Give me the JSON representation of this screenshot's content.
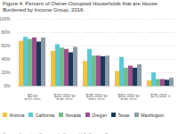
{
  "chart_data": {
    "type": "bar",
    "title": "Figure 4. Percent of Owner-Occupied Households that are House Burdened by Income Group,  2016.",
    "annotations": [
      "Source: American Community Survey, U.S. Census Bureau"
    ],
    "categories": [
      "$0 to\n$20,000",
      "$20,000 to\n$35,000",
      "$35,000 to\n$50,000",
      "$50,000 to\n$75,000",
      "$75,000 +"
    ],
    "series": [
      {
        "name": "Arizona",
        "color": "#F5C242",
        "values": [
          67,
          52,
          37,
          22,
          8
        ]
      },
      {
        "name": "California",
        "color": "#5BC8D4",
        "values": [
          73,
          62,
          55,
          43,
          20
        ]
      },
      {
        "name": "Nevada",
        "color": "#6DBF8C",
        "values": [
          70,
          57,
          45,
          27,
          10
        ]
      },
      {
        "name": "Oregon",
        "color": "#9B4F8C",
        "values": [
          72,
          55,
          45,
          30,
          10
        ]
      },
      {
        "name": "Texas",
        "color": "#1A3A5C",
        "values": [
          66,
          50,
          44,
          27,
          9
        ]
      },
      {
        "name": "Washington",
        "color": "#8C9CA8",
        "values": [
          72,
          58,
          45,
          32,
          12
        ]
      }
    ],
    "ylim": [
      0,
      100
    ],
    "yticks": [
      {
        "value": 0,
        "label": "0%"
      },
      {
        "value": 20,
        "label": "20%"
      },
      {
        "value": 40,
        "label": "40%"
      },
      {
        "value": 60,
        "label": "60%"
      },
      {
        "value": 80,
        "label": "80%"
      },
      {
        "value": 100,
        "label": "100%"
      }
    ],
    "grid": true,
    "legend": "bottom"
  }
}
